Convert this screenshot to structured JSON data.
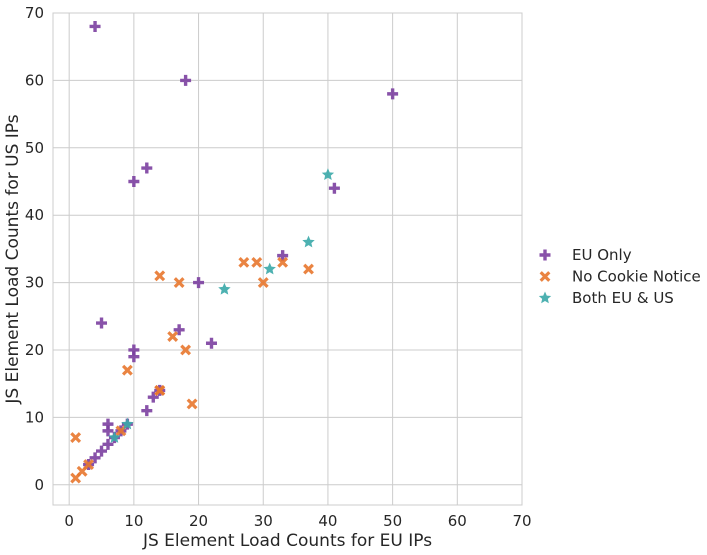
{
  "chart_data": {
    "type": "scatter",
    "xlabel": "JS Element Load Counts for EU IPs",
    "ylabel": "JS Element Load Counts for US IPs",
    "xlim": [
      -2.5,
      70
    ],
    "ylim": [
      -3,
      70
    ],
    "xticks": [
      0,
      10,
      20,
      30,
      40,
      50,
      60,
      70
    ],
    "yticks": [
      0,
      10,
      20,
      30,
      40,
      50,
      60,
      70
    ],
    "grid": true,
    "legend_position": "right",
    "series": [
      {
        "name": "EU Only",
        "marker": "plus",
        "color": "#7b3fa0",
        "points": [
          [
            4,
            68
          ],
          [
            18,
            60
          ],
          [
            50,
            58
          ],
          [
            41,
            44
          ],
          [
            12,
            47
          ],
          [
            10,
            45
          ],
          [
            33,
            34
          ],
          [
            20,
            30
          ],
          [
            17,
            23
          ],
          [
            5,
            24
          ],
          [
            10,
            20
          ],
          [
            10,
            19
          ],
          [
            22,
            21
          ],
          [
            13,
            13
          ],
          [
            12,
            11
          ],
          [
            9,
            9
          ],
          [
            6,
            9
          ],
          [
            6,
            8
          ],
          [
            5,
            5
          ],
          [
            4,
            4
          ],
          [
            6,
            6
          ],
          [
            8,
            8
          ],
          [
            7,
            7
          ],
          [
            14,
            14
          ],
          [
            3,
            3
          ]
        ]
      },
      {
        "name": "No Cookie Notice",
        "marker": "x",
        "color": "#e8772e",
        "points": [
          [
            1,
            7
          ],
          [
            1,
            1
          ],
          [
            2,
            2
          ],
          [
            3,
            3
          ],
          [
            8,
            8
          ],
          [
            9,
            17
          ],
          [
            14,
            31
          ],
          [
            17,
            30
          ],
          [
            16,
            22
          ],
          [
            18,
            20
          ],
          [
            14,
            14
          ],
          [
            14,
            14
          ],
          [
            19,
            12
          ],
          [
            27,
            33
          ],
          [
            29,
            33
          ],
          [
            30,
            30
          ],
          [
            33,
            33
          ],
          [
            37,
            32
          ]
        ]
      },
      {
        "name": "Both EU & US",
        "marker": "star",
        "color": "#3aa8a8",
        "points": [
          [
            7,
            7
          ],
          [
            9,
            9
          ],
          [
            24,
            29
          ],
          [
            31,
            32
          ],
          [
            37,
            36
          ],
          [
            40,
            46
          ]
        ]
      }
    ]
  }
}
